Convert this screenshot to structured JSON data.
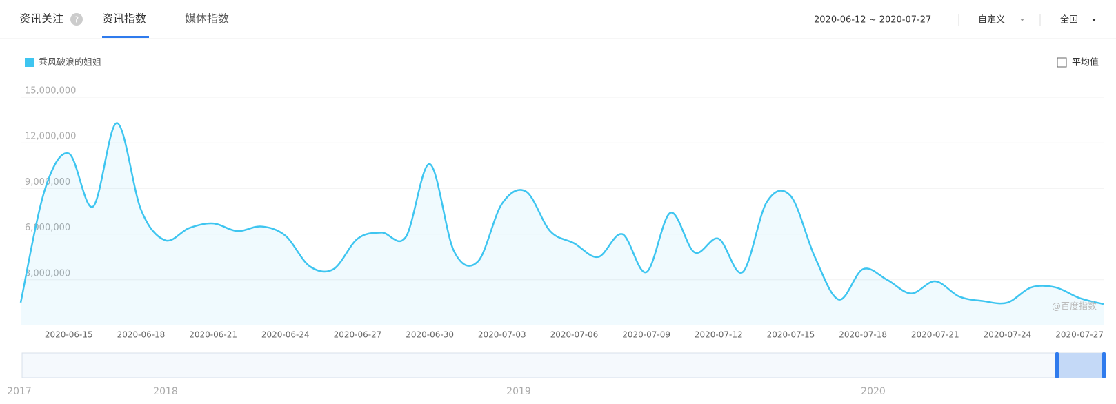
{
  "header": {
    "tabs": [
      "资讯关注",
      "资讯指数",
      "媒体指数"
    ],
    "date_range": "2020-06-12 ~ 2020-07-27",
    "period": "自定义",
    "region": "全国"
  },
  "average_toggle": "平均值",
  "watermark": "@百度指数",
  "navigator": {
    "labels": [
      "2017",
      "2018",
      "2019",
      "2020"
    ]
  },
  "chart_data": {
    "type": "line",
    "categories": [
      null,
      null,
      null,
      "2020-06-15",
      null,
      null,
      "2020-06-18",
      null,
      null,
      "2020-06-21",
      null,
      null,
      "2020-06-24",
      null,
      null,
      "2020-06-27",
      null,
      null,
      "2020-06-30",
      null,
      null,
      "2020-07-03",
      null,
      null,
      "2020-07-06",
      null,
      null,
      "2020-07-09",
      null,
      null,
      "2020-07-12",
      null,
      null,
      "2020-07-15",
      null,
      null,
      "2020-07-18",
      null,
      null,
      "2020-07-21",
      null,
      null,
      "2020-07-24",
      null,
      null,
      "2020-07-27"
    ],
    "series": [
      {
        "name": "乘风破浪的姐姐",
        "color": "#3ec5f0",
        "values": [
          1500000,
          8900000,
          11300000,
          7800000,
          13300000,
          7600000,
          5600000,
          6400000,
          6700000,
          6200000,
          6500000,
          5900000,
          3900000,
          3700000,
          5700000,
          6100000,
          5800000,
          10600000,
          4900000,
          4200000,
          8000000,
          8800000,
          6200000,
          5400000,
          4500000,
          6000000,
          3500000,
          7400000,
          4800000,
          5700000,
          3500000,
          8100000,
          8500000,
          4500000,
          1700000,
          3700000,
          3000000,
          2100000,
          2900000,
          1900000,
          1600000,
          1500000,
          2500000,
          2500000,
          1800000,
          1400000
        ]
      }
    ],
    "ylim": [
      0,
      15000000
    ],
    "yticks": [
      {
        "value": 3000000,
        "label": "3,000,000"
      },
      {
        "value": 6000000,
        "label": "6,000,000"
      },
      {
        "value": 9000000,
        "label": "9,000,000"
      },
      {
        "value": 12000000,
        "label": "12,000,000"
      },
      {
        "value": 15000000,
        "label": "15,000,000"
      }
    ],
    "grid": true
  }
}
